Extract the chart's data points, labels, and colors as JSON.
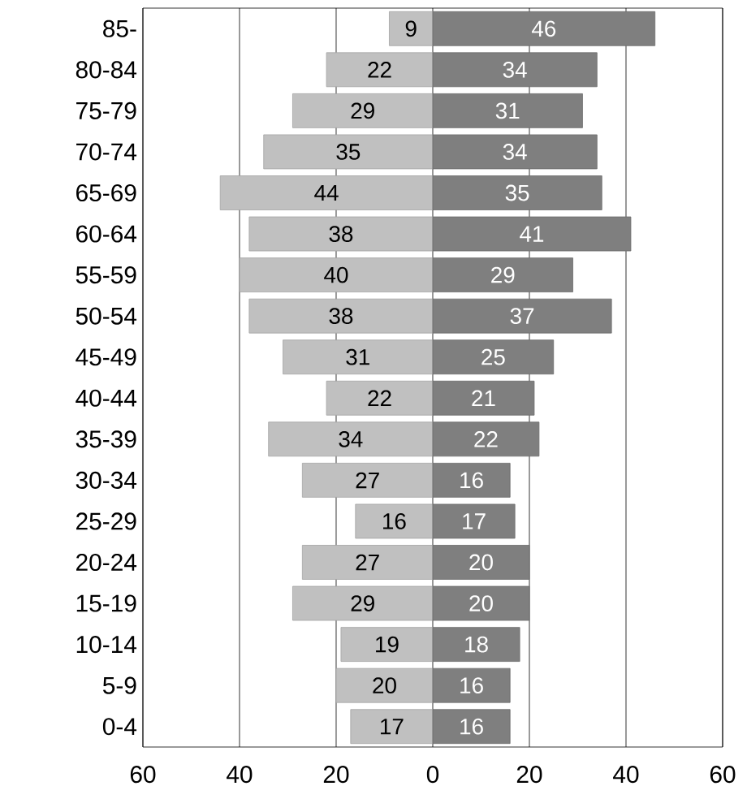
{
  "chart_data": {
    "type": "bar",
    "orientation": "horizontal",
    "categories": [
      "85-",
      "80-84",
      "75-79",
      "70-74",
      "65-69",
      "60-64",
      "55-59",
      "50-54",
      "45-49",
      "40-44",
      "35-39",
      "30-34",
      "25-29",
      "20-24",
      "15-19",
      "10-14",
      "5-9",
      "0-4"
    ],
    "series": [
      {
        "color": "#c0c0c0",
        "base": [
          -9,
          -22,
          -29,
          -35,
          -44,
          -38,
          -40,
          -38,
          -31,
          -22,
          -34,
          -27,
          -16,
          -27,
          -29,
          -19,
          -20,
          -17
        ],
        "values": [
          9,
          22,
          29,
          35,
          44,
          38,
          40,
          38,
          31,
          22,
          34,
          27,
          16,
          27,
          29,
          19,
          20,
          17
        ],
        "value_labels": [
          "9",
          "22",
          "29",
          "35",
          "44",
          "38",
          "40",
          "38",
          "31",
          "22",
          "34",
          "27",
          "16",
          "27",
          "29",
          "19",
          "20",
          "17"
        ]
      },
      {
        "color": "#7f7f7f",
        "values": [
          46,
          34,
          31,
          34,
          35,
          41,
          29,
          37,
          25,
          21,
          22,
          16,
          17,
          20,
          20,
          18,
          16,
          16
        ],
        "value_labels": [
          "46",
          "34",
          "31",
          "34",
          "35",
          "41",
          "29",
          "37",
          "25",
          "21",
          "22",
          "16",
          "17",
          "20",
          "20",
          "18",
          "16",
          "16"
        ]
      }
    ],
    "xlim": [
      -60,
      60
    ],
    "xticks": [
      {
        "value": -60,
        "label": "60"
      },
      {
        "value": -40,
        "label": "40"
      },
      {
        "value": -20,
        "label": "20"
      },
      0,
      20,
      40,
      60
    ],
    "grid": "x"
  }
}
